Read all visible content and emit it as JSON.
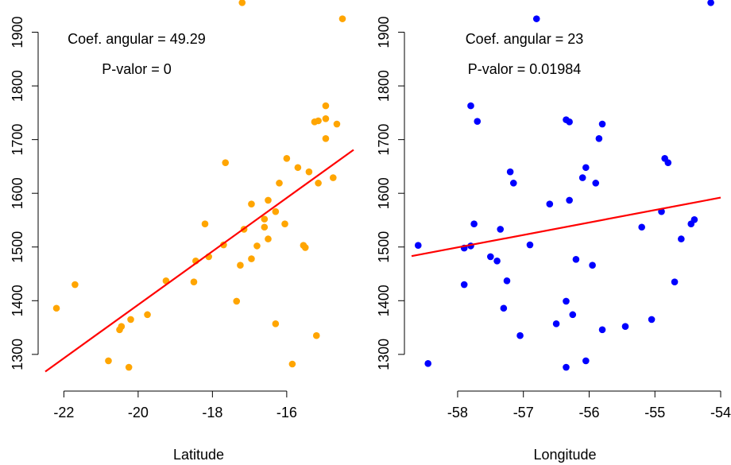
{
  "chart_data": [
    {
      "type": "scatter",
      "xlabel": "Latitude",
      "ylabel": "",
      "xlim": [
        -22.5,
        -14.2
      ],
      "ylim": [
        1245,
        1960
      ],
      "xticks": [
        -22,
        -20,
        -18,
        -16
      ],
      "yticks": [
        1300,
        1400,
        1500,
        1600,
        1700,
        1800,
        1900
      ],
      "point_color": "#FFA500",
      "line_color": "#FF0000",
      "annotations": [
        "Coef. angular = 49.29",
        "P-valor = 0"
      ],
      "regression": {
        "slope": 49.29,
        "x": [
          -22.5,
          -14.2
        ],
        "y": [
          1268,
          1681
        ]
      },
      "points": [
        [
          -17.2,
          1955
        ],
        [
          -14.5,
          1925
        ],
        [
          -22.2,
          1386
        ],
        [
          -21.7,
          1430
        ],
        [
          -20.8,
          1288
        ],
        [
          -20.5,
          1346
        ],
        [
          -20.45,
          1352
        ],
        [
          -20.25,
          1276
        ],
        [
          -20.2,
          1365
        ],
        [
          -19.75,
          1374
        ],
        [
          -19.25,
          1437
        ],
        [
          -18.45,
          1474
        ],
        [
          -18.5,
          1435
        ],
        [
          -18.2,
          1543
        ],
        [
          -18.1,
          1482
        ],
        [
          -17.7,
          1504
        ],
        [
          -17.65,
          1657
        ],
        [
          -17.35,
          1399
        ],
        [
          -17.25,
          1466
        ],
        [
          -17.15,
          1533
        ],
        [
          -16.95,
          1478
        ],
        [
          -16.95,
          1580
        ],
        [
          -16.8,
          1502
        ],
        [
          -16.6,
          1537
        ],
        [
          -16.6,
          1552
        ],
        [
          -16.5,
          1587
        ],
        [
          -16.5,
          1515
        ],
        [
          -16.3,
          1357
        ],
        [
          -16.3,
          1566
        ],
        [
          -16.2,
          1619
        ],
        [
          -16.05,
          1543
        ],
        [
          -16.0,
          1665
        ],
        [
          -15.85,
          1282
        ],
        [
          -15.7,
          1648
        ],
        [
          -15.55,
          1503
        ],
        [
          -15.5,
          1499
        ],
        [
          -15.4,
          1640
        ],
        [
          -15.25,
          1733
        ],
        [
          -15.2,
          1335
        ],
        [
          -15.15,
          1735
        ],
        [
          -15.15,
          1619
        ],
        [
          -14.95,
          1702
        ],
        [
          -14.95,
          1739
        ],
        [
          -14.95,
          1763
        ],
        [
          -14.75,
          1629
        ],
        [
          -14.65,
          1729
        ]
      ]
    },
    {
      "type": "scatter",
      "xlabel": "Longitude",
      "ylabel": "",
      "xlim": [
        -58.7,
        -54.0
      ],
      "ylim": [
        1245,
        1960
      ],
      "xticks": [
        -58,
        -57,
        -56,
        -55,
        -54
      ],
      "yticks": [
        1300,
        1400,
        1500,
        1600,
        1700,
        1800,
        1900
      ],
      "point_color": "#0000FF",
      "line_color": "#FF0000",
      "annotations": [
        "Coef. angular = 23",
        "P-valor = 0.01984"
      ],
      "regression": {
        "slope": 23,
        "x": [
          -58.7,
          -54.0
        ],
        "y": [
          1483,
          1592
        ]
      },
      "points": [
        [
          -54.15,
          1955
        ],
        [
          -56.8,
          1925
        ],
        [
          -58.6,
          1503
        ],
        [
          -58.45,
          1283
        ],
        [
          -57.9,
          1498
        ],
        [
          -57.9,
          1430
        ],
        [
          -57.8,
          1763
        ],
        [
          -57.8,
          1502
        ],
        [
          -57.75,
          1543
        ],
        [
          -57.7,
          1734
        ],
        [
          -57.5,
          1482
        ],
        [
          -57.4,
          1474
        ],
        [
          -57.35,
          1533
        ],
        [
          -57.3,
          1386
        ],
        [
          -57.25,
          1437
        ],
        [
          -57.2,
          1640
        ],
        [
          -57.15,
          1619
        ],
        [
          -57.05,
          1335
        ],
        [
          -56.9,
          1504
        ],
        [
          -56.6,
          1580
        ],
        [
          -56.5,
          1357
        ],
        [
          -56.35,
          1737
        ],
        [
          -56.35,
          1399
        ],
        [
          -56.35,
          1276
        ],
        [
          -56.3,
          1587
        ],
        [
          -56.3,
          1733
        ],
        [
          -56.25,
          1374
        ],
        [
          -56.2,
          1477
        ],
        [
          -56.1,
          1629
        ],
        [
          -56.05,
          1648
        ],
        [
          -56.05,
          1288
        ],
        [
          -55.95,
          1466
        ],
        [
          -55.9,
          1619
        ],
        [
          -55.85,
          1702
        ],
        [
          -55.8,
          1729
        ],
        [
          -55.8,
          1346
        ],
        [
          -55.45,
          1352
        ],
        [
          -55.2,
          1537
        ],
        [
          -55.05,
          1365
        ],
        [
          -54.9,
          1566
        ],
        [
          -54.85,
          1665
        ],
        [
          -54.8,
          1657
        ],
        [
          -54.7,
          1435
        ],
        [
          -54.6,
          1515
        ],
        [
          -54.45,
          1543
        ],
        [
          -54.4,
          1551
        ]
      ]
    }
  ]
}
